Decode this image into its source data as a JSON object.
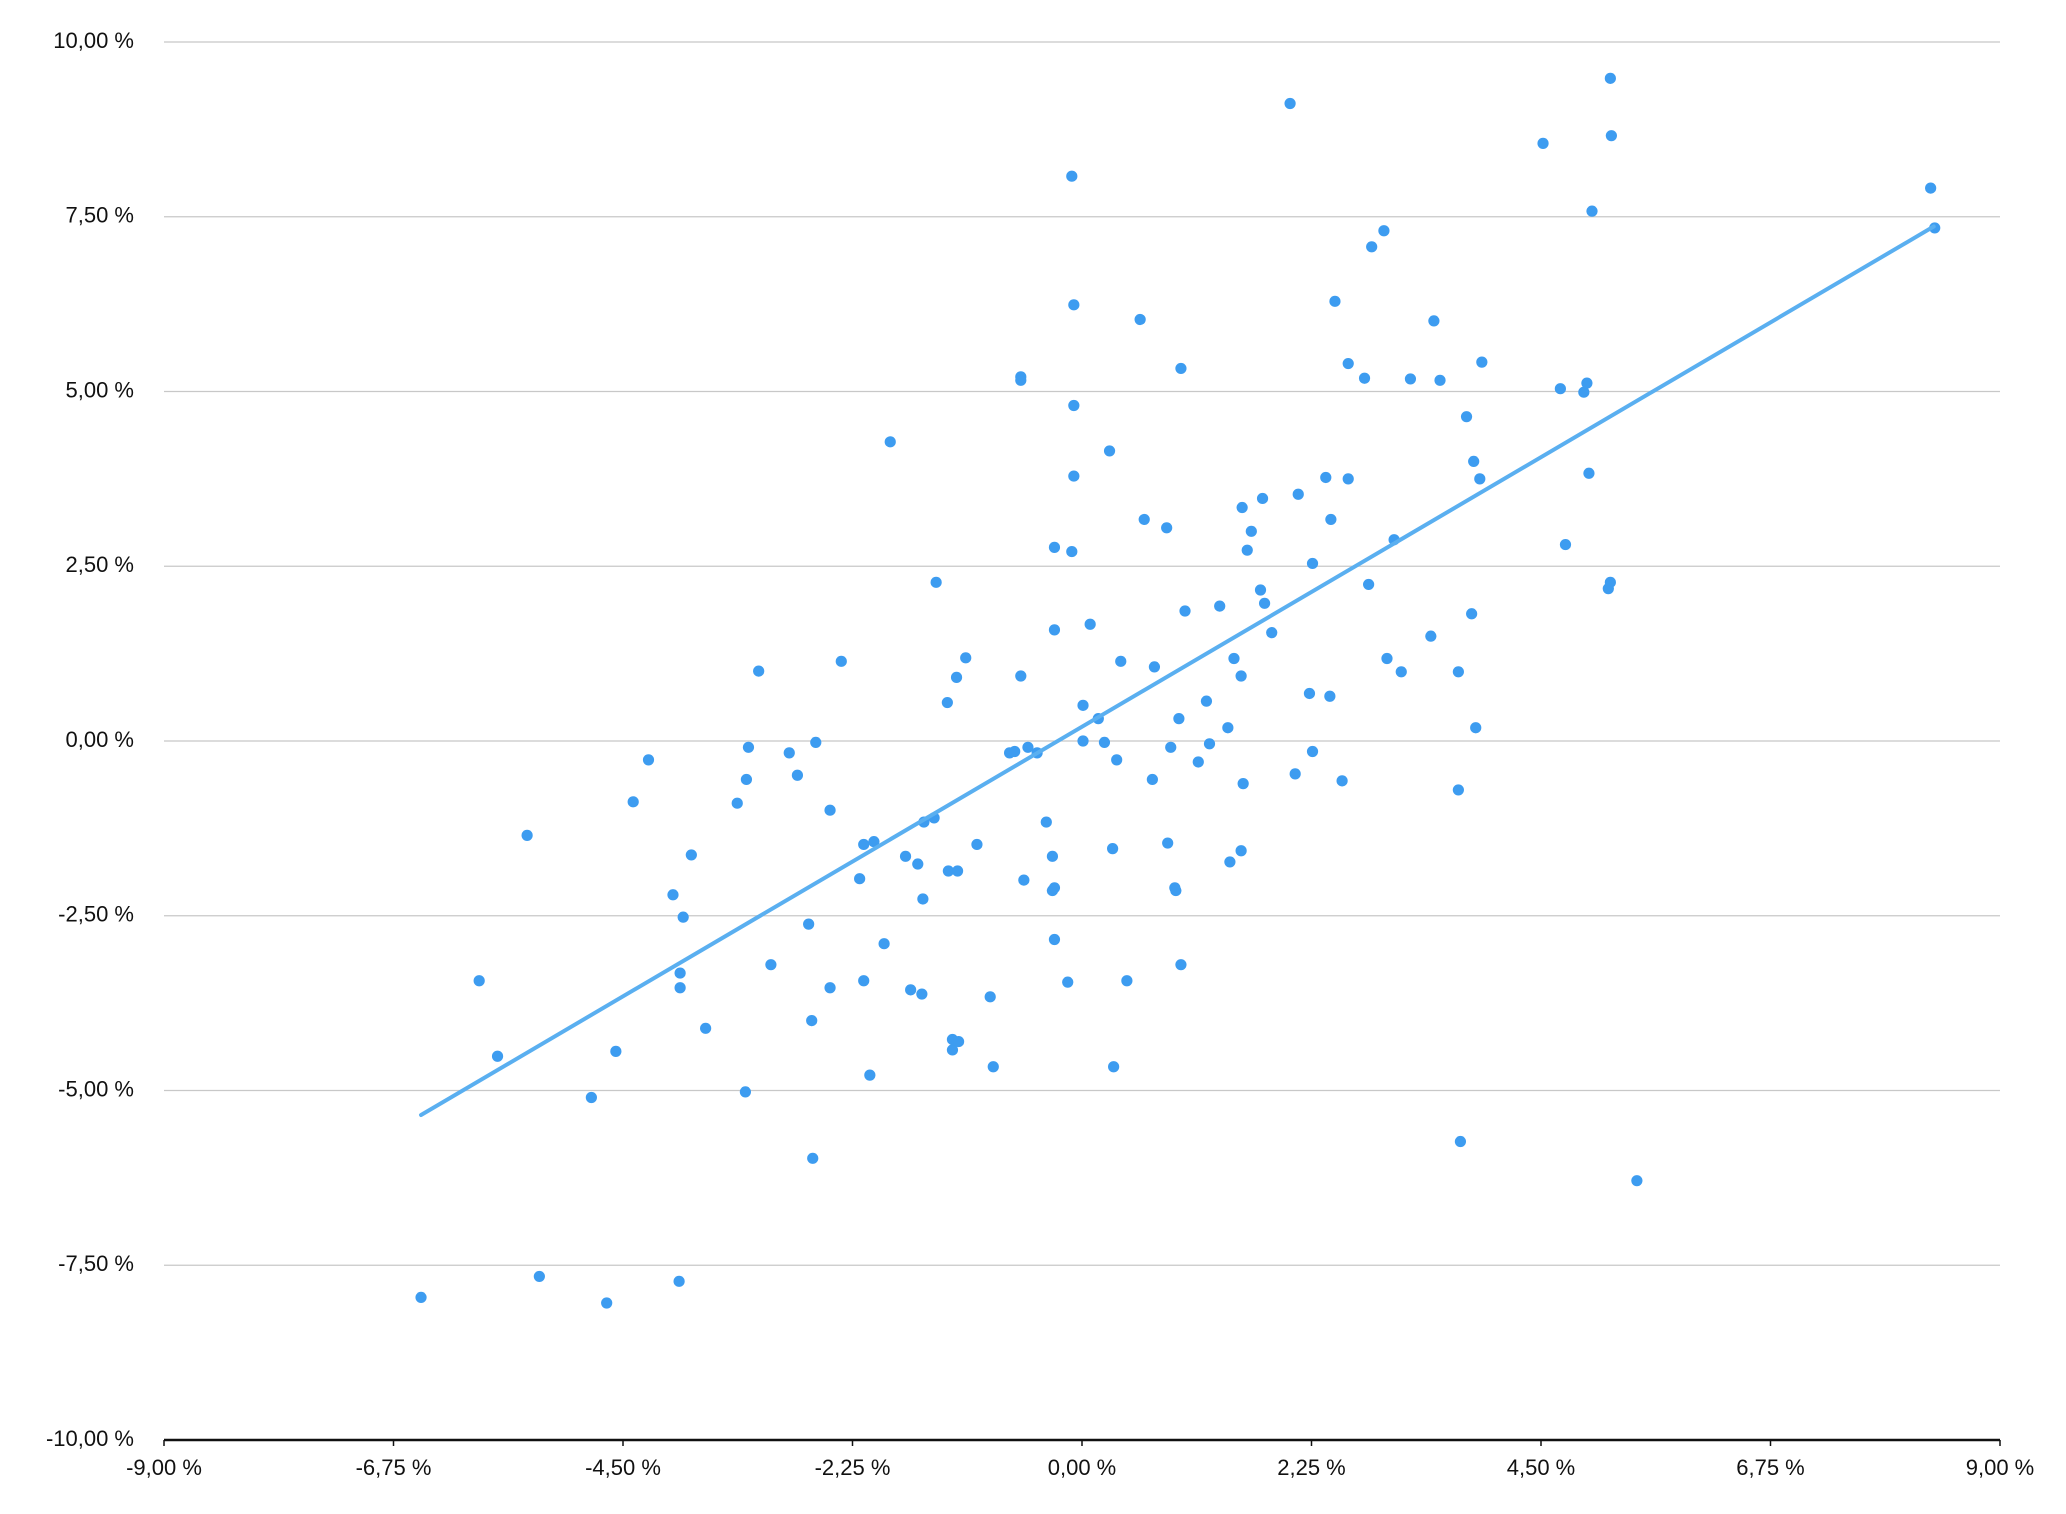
{
  "chart_data": {
    "type": "scatter",
    "color": "#3d9cf0",
    "grid": true,
    "x": [
      -6.48,
      -5.91,
      -5.73,
      -5.44,
      -5.32,
      -4.81,
      -4.66,
      -4.57,
      -4.4,
      -4.25,
      -4.01,
      -3.95,
      -3.94,
      -3.94,
      -3.91,
      -3.83,
      -3.69,
      -3.38,
      -3.3,
      -3.29,
      -3.27,
      -3.17,
      -3.05,
      -2.87,
      -2.79,
      -2.68,
      -2.65,
      -2.64,
      -2.61,
      -2.47,
      -2.47,
      -2.36,
      -2.18,
      -2.14,
      -2.14,
      -2.08,
      -2.04,
      -1.94,
      -1.88,
      -1.73,
      -1.68,
      -1.61,
      -1.57,
      -1.56,
      -1.55,
      -1.45,
      -1.43,
      -1.32,
      -1.31,
      -1.27,
      -1.27,
      -1.23,
      -1.22,
      -1.21,
      -1.14,
      -1.03,
      -0.9,
      -0.87,
      -0.71,
      -0.66,
      -0.6,
      -0.6,
      -0.6,
      -0.57,
      -0.53,
      -0.44,
      -0.35,
      -0.29,
      -0.27,
      -0.27,
      -0.27,
      -0.29,
      -0.27,
      -0.14,
      -0.1,
      -0.1,
      -0.08,
      -0.08,
      -0.08,
      0.01,
      0.01,
      0.08,
      0.16,
      0.22,
      0.27,
      0.3,
      0.31,
      0.34,
      0.38,
      0.44,
      0.57,
      0.61,
      0.69,
      0.71,
      0.83,
      0.84,
      0.87,
      0.91,
      0.92,
      0.95,
      0.97,
      0.97,
      1.01,
      1.14,
      1.22,
      1.25,
      1.35,
      1.43,
      1.45,
      1.49,
      1.56,
      1.56,
      1.57,
      1.58,
      1.62,
      1.66,
      1.75,
      1.77,
      1.79,
      1.86,
      2.04,
      2.09,
      2.12,
      2.23,
      2.26,
      2.26,
      2.39,
      2.43,
      2.44,
      2.48,
      2.55,
      2.61,
      2.61,
      2.77,
      2.81,
      2.84,
      2.96,
      2.99,
      3.06,
      3.13,
      3.22,
      3.42,
      3.45,
      3.51,
      3.69,
      3.69,
      3.71,
      3.77,
      3.82,
      3.84,
      3.86,
      3.9,
      3.92,
      4.52,
      4.69,
      4.74,
      4.92,
      4.95,
      4.97,
      5.0,
      5.16,
      5.18,
      5.18,
      5.19,
      5.44,
      8.32,
      8.36
    ],
    "y": [
      -7.96,
      -3.43,
      -4.51,
      -1.35,
      -7.66,
      -5.1,
      -8.04,
      -4.44,
      -0.87,
      -0.27,
      -2.2,
      -7.73,
      -3.32,
      -3.53,
      -2.52,
      -1.63,
      -4.11,
      -0.89,
      -5.02,
      -0.55,
      -0.09,
      1.0,
      -3.2,
      -0.17,
      -0.49,
      -2.62,
      -4.0,
      -5.97,
      -0.02,
      -0.99,
      -3.53,
      1.14,
      -1.97,
      -1.48,
      -3.43,
      -4.78,
      -1.44,
      -2.9,
      4.28,
      -1.65,
      -3.56,
      -1.76,
      -3.62,
      -2.26,
      -1.16,
      -1.1,
      2.27,
      0.55,
      -1.86,
      -4.27,
      -4.42,
      0.91,
      -1.86,
      -4.3,
      1.19,
      -1.48,
      -3.66,
      -4.66,
      -0.17,
      -0.15,
      5.21,
      5.16,
      0.93,
      -1.99,
      -0.09,
      -0.17,
      -1.16,
      -2.14,
      -2.1,
      1.59,
      2.77,
      -1.65,
      -2.84,
      -3.45,
      8.08,
      2.71,
      6.24,
      4.8,
      3.79,
      0.51,
      0.0,
      1.67,
      0.32,
      -0.02,
      4.15,
      -1.54,
      -4.66,
      -0.27,
      1.14,
      -3.43,
      6.03,
      3.17,
      -0.55,
      1.06,
      3.05,
      -1.46,
      -0.09,
      -2.1,
      -2.14,
      0.32,
      5.33,
      -3.2,
      1.86,
      -0.3,
      0.57,
      -0.04,
      1.93,
      0.19,
      -1.73,
      1.18,
      0.93,
      -1.57,
      3.34,
      -0.61,
      2.73,
      3.0,
      2.16,
      3.47,
      1.97,
      1.55,
      9.12,
      -0.47,
      3.53,
      0.68,
      2.54,
      -0.15,
      3.77,
      0.64,
      3.17,
      6.29,
      -0.57,
      3.75,
      5.4,
      5.19,
      2.24,
      7.07,
      7.3,
      1.18,
      2.88,
      0.99,
      5.18,
      1.5,
      6.01,
      5.16,
      0.99,
      -0.7,
      -5.73,
      4.64,
      1.82,
      4.0,
      0.19,
      3.75,
      5.42,
      8.55,
      5.04,
      2.81,
      4.99,
      5.12,
      3.83,
      7.58,
      2.18,
      2.27,
      9.48,
      8.66,
      -6.29,
      7.91,
      7.34
    ],
    "trendline": {
      "x": [
        -6.48,
        8.35
      ],
      "y": [
        -5.35,
        7.36
      ],
      "color": "#5aaff0"
    },
    "xlim": [
      -9,
      9
    ],
    "ylim": [
      -10,
      10
    ],
    "xticks": [
      {
        "value": -9,
        "label": "-9,00 %"
      },
      {
        "value": -6.75,
        "label": "-6,75 %"
      },
      {
        "value": -4.5,
        "label": "-4,50 %"
      },
      {
        "value": -2.25,
        "label": "-2,25 %"
      },
      {
        "value": 0,
        "label": "0,00 %"
      },
      {
        "value": 2.25,
        "label": "2,25 %"
      },
      {
        "value": 4.5,
        "label": "4,50 %"
      },
      {
        "value": 6.75,
        "label": "6,75 %"
      },
      {
        "value": 9,
        "label": "9,00 %"
      }
    ],
    "yticks": [
      {
        "value": -10,
        "label": "-10,00 %"
      },
      {
        "value": -7.5,
        "label": "-7,50 %"
      },
      {
        "value": -5,
        "label": "-5,00 %"
      },
      {
        "value": -2.5,
        "label": "-2,50 %"
      },
      {
        "value": 0,
        "label": "0,00 %"
      },
      {
        "value": 2.5,
        "label": "2,50 %"
      },
      {
        "value": 5,
        "label": "5,00 %"
      },
      {
        "value": 7.5,
        "label": "7,50 %"
      },
      {
        "value": 10,
        "label": "10,00 %"
      }
    ]
  }
}
